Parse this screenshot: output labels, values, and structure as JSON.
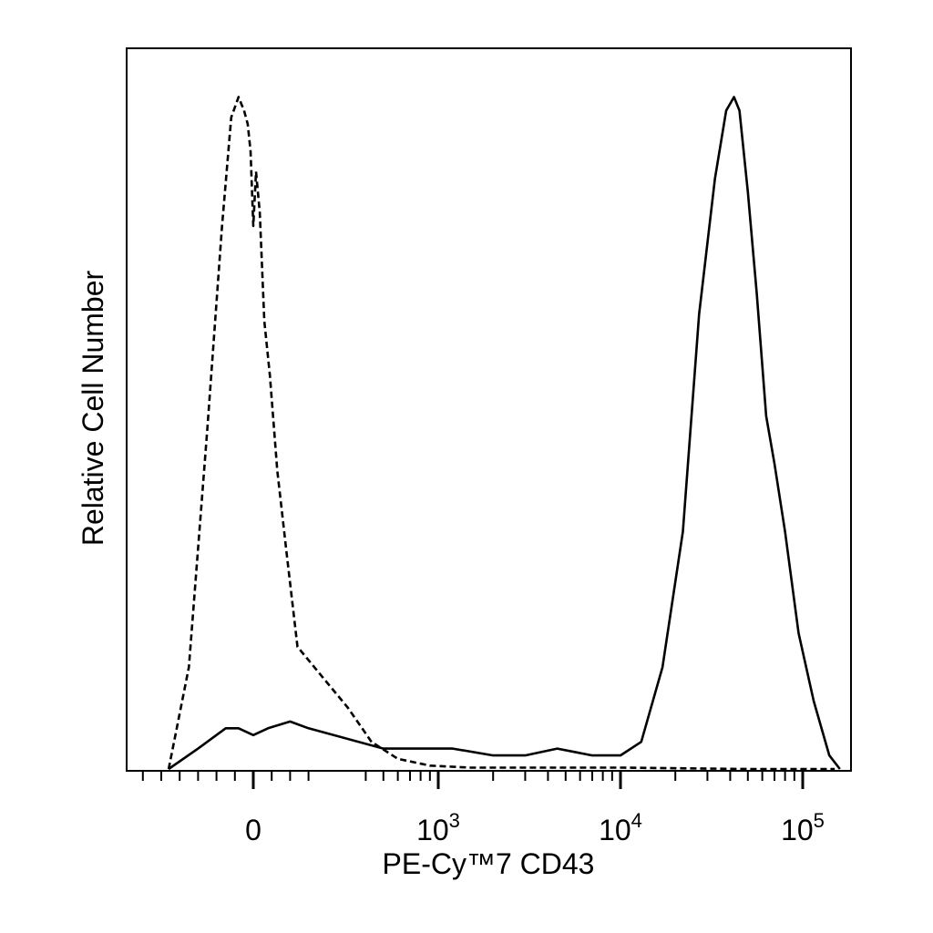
{
  "chart_data": {
    "type": "line",
    "title": "",
    "xlabel": "PE-Cy™7 CD43",
    "ylabel": "Relative Cell Number",
    "x_scale": "biexponential",
    "xlim": [
      -800,
      250000
    ],
    "ylim": [
      0,
      100
    ],
    "grid": false,
    "legend": "none",
    "x_ticks": [
      {
        "value": 0,
        "base": "0",
        "exp": ""
      },
      {
        "value": 1000,
        "base": "10",
        "exp": "3"
      },
      {
        "value": 10000,
        "base": "10",
        "exp": "4"
      },
      {
        "value": 100000,
        "base": "10",
        "exp": "5"
      }
    ],
    "series": [
      {
        "style": "dashed",
        "x": [
          -460,
          -350,
          -250,
          -170,
          -120,
          -80,
          -50,
          -30,
          -15,
          0,
          15,
          35,
          60,
          90,
          130,
          180,
          240,
          320,
          430,
          600,
          900,
          1500,
          3000,
          10000,
          50000,
          150000
        ],
        "y": [
          0,
          15,
          50,
          80,
          96,
          99,
          97,
          95,
          91,
          80,
          88,
          82,
          66,
          58,
          44,
          32,
          18,
          9,
          4,
          1.5,
          0.5,
          0.2,
          0.2,
          0.2,
          0,
          0
        ]
      },
      {
        "style": "solid",
        "x": [
          -460,
          -300,
          -150,
          -80,
          0,
          80,
          200,
          300,
          500,
          800,
          1200,
          2000,
          3000,
          4500,
          7000,
          10000,
          13000,
          17000,
          22000,
          27000,
          33000,
          38000,
          42000,
          45000,
          50000,
          56000,
          63000,
          70000,
          80000,
          95000,
          115000,
          140000,
          160000
        ],
        "y": [
          0,
          3,
          6,
          6,
          5,
          6,
          7,
          6,
          3,
          3,
          3,
          2,
          2,
          3,
          2,
          2,
          4,
          15,
          35,
          67,
          87,
          97,
          99,
          97,
          85,
          70,
          52,
          45,
          35,
          20,
          10,
          2,
          0
        ]
      }
    ]
  }
}
